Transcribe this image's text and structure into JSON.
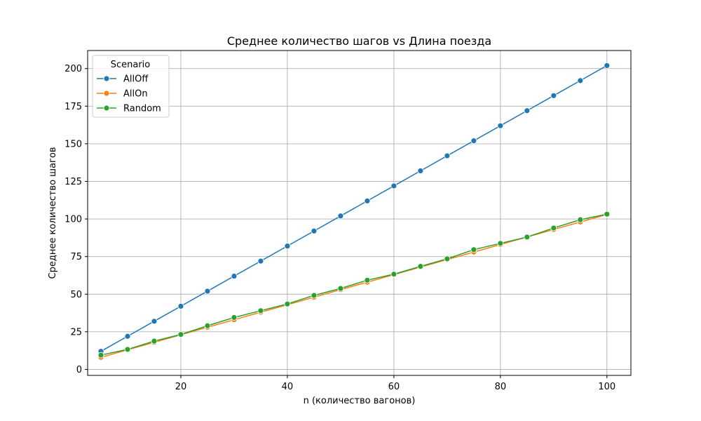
{
  "chart_data": {
    "type": "line",
    "title": "Среднее количество шагов vs Длина поезда",
    "xlabel": "n (количество вагонов)",
    "ylabel": "Среднее количество шагов",
    "xlim": [
      2.5,
      104.5
    ],
    "ylim": [
      -4,
      212
    ],
    "x_ticks": [
      20,
      40,
      60,
      80,
      100
    ],
    "y_ticks": [
      0,
      25,
      50,
      75,
      100,
      125,
      150,
      175,
      200
    ],
    "grid": true,
    "legend": {
      "title": "Scenario",
      "placement": "top-left"
    },
    "x": [
      5,
      10,
      15,
      20,
      25,
      30,
      35,
      40,
      45,
      50,
      55,
      60,
      65,
      70,
      75,
      80,
      85,
      90,
      95,
      100
    ],
    "series": [
      {
        "name": "AllOff",
        "color": "#1f77b4",
        "values": [
          12,
          22,
          32,
          42,
          52,
          62,
          72,
          82,
          92,
          102,
          112,
          122,
          132,
          142,
          152,
          162,
          172,
          182,
          192,
          202
        ]
      },
      {
        "name": "AllOn",
        "color": "#ff7f0e",
        "values": [
          8,
          13,
          18,
          23,
          28,
          33,
          38,
          43,
          48,
          53,
          58,
          63,
          68,
          73,
          78,
          83,
          88,
          93,
          98,
          103
        ]
      },
      {
        "name": "Random",
        "color": "#2ca02c",
        "values": [
          9.5,
          13.3,
          18.8,
          23.2,
          29,
          34.5,
          39,
          43.5,
          49.2,
          53.8,
          59.3,
          63.3,
          68.5,
          73.5,
          79.6,
          83.8,
          88,
          94,
          99.5,
          103.2
        ]
      }
    ]
  }
}
